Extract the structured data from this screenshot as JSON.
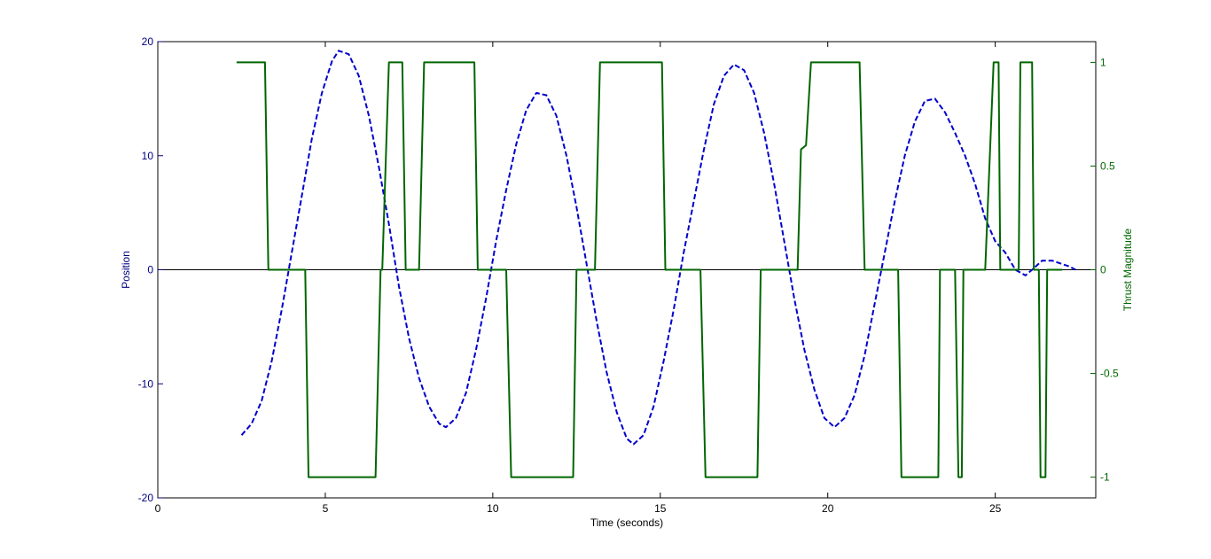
{
  "chart_data": {
    "type": "line",
    "title": "",
    "xlabel": "Time (seconds)",
    "ylabel_left": "Position",
    "ylabel_right": "Thrust Magnitude",
    "xlim": [
      0,
      28
    ],
    "ylim_left": [
      -20,
      20
    ],
    "ylim_right": [
      -1.1,
      1.1
    ],
    "grid": false,
    "legend": "none",
    "x_ticks": [
      0,
      5,
      10,
      15,
      20,
      25
    ],
    "x_tick_labels": [
      "0",
      "5",
      "10",
      "15",
      "20",
      "25"
    ],
    "y_left_ticks": [
      -20,
      -10,
      0,
      10,
      20
    ],
    "y_left_tick_labels": [
      "-20",
      "-10",
      "0",
      "10",
      "20"
    ],
    "y_right_ticks": [
      -1,
      -0.5,
      0,
      0.5,
      1
    ],
    "y_right_tick_labels": [
      "-1",
      "-0.5",
      "0",
      "0.5",
      "1"
    ],
    "colors": {
      "position": "#0000cc",
      "thrust": "#006600",
      "left_axis": "#000080",
      "right_axis": "#006600",
      "frame": "#000000",
      "zero_line": "#000000"
    },
    "series": [
      {
        "axis": "left",
        "style": "dashed",
        "points": [
          [
            2.5,
            -14.5
          ],
          [
            2.8,
            -13.5
          ],
          [
            3.1,
            -11.5
          ],
          [
            3.4,
            -8.0
          ],
          [
            3.7,
            -3.5
          ],
          [
            4.0,
            1.5
          ],
          [
            4.3,
            6.5
          ],
          [
            4.6,
            11.5
          ],
          [
            4.9,
            15.5
          ],
          [
            5.2,
            18.3
          ],
          [
            5.4,
            19.2
          ],
          [
            5.7,
            18.9
          ],
          [
            6.0,
            17.0
          ],
          [
            6.3,
            13.5
          ],
          [
            6.6,
            9.0
          ],
          [
            6.9,
            4.0
          ],
          [
            7.2,
            -1.5
          ],
          [
            7.5,
            -6.0
          ],
          [
            7.8,
            -9.5
          ],
          [
            8.1,
            -12.0
          ],
          [
            8.4,
            -13.5
          ],
          [
            8.6,
            -13.8
          ],
          [
            8.9,
            -13.0
          ],
          [
            9.2,
            -10.8
          ],
          [
            9.5,
            -7.0
          ],
          [
            9.8,
            -2.5
          ],
          [
            10.1,
            2.5
          ],
          [
            10.4,
            7.0
          ],
          [
            10.7,
            11.0
          ],
          [
            11.0,
            14.0
          ],
          [
            11.3,
            15.5
          ],
          [
            11.6,
            15.3
          ],
          [
            11.9,
            13.5
          ],
          [
            12.2,
            10.0
          ],
          [
            12.5,
            5.5
          ],
          [
            12.8,
            0.5
          ],
          [
            13.1,
            -4.5
          ],
          [
            13.4,
            -9.0
          ],
          [
            13.7,
            -12.5
          ],
          [
            14.0,
            -14.8
          ],
          [
            14.2,
            -15.3
          ],
          [
            14.5,
            -14.5
          ],
          [
            14.8,
            -12.0
          ],
          [
            15.1,
            -8.0
          ],
          [
            15.4,
            -3.5
          ],
          [
            15.7,
            1.5
          ],
          [
            16.0,
            6.0
          ],
          [
            16.3,
            10.5
          ],
          [
            16.6,
            14.5
          ],
          [
            16.9,
            17.0
          ],
          [
            17.2,
            18.0
          ],
          [
            17.5,
            17.5
          ],
          [
            17.8,
            15.5
          ],
          [
            18.1,
            12.0
          ],
          [
            18.4,
            7.5
          ],
          [
            18.7,
            2.5
          ],
          [
            19.0,
            -2.5
          ],
          [
            19.3,
            -7.0
          ],
          [
            19.6,
            -10.5
          ],
          [
            19.9,
            -13.0
          ],
          [
            20.2,
            -13.8
          ],
          [
            20.5,
            -13.0
          ],
          [
            20.8,
            -11.0
          ],
          [
            21.1,
            -7.5
          ],
          [
            21.4,
            -3.0
          ],
          [
            21.7,
            1.5
          ],
          [
            22.0,
            6.0
          ],
          [
            22.3,
            10.0
          ],
          [
            22.6,
            13.0
          ],
          [
            22.9,
            14.8
          ],
          [
            23.2,
            15.0
          ],
          [
            23.5,
            13.8
          ],
          [
            23.8,
            12.0
          ],
          [
            24.1,
            10.0
          ],
          [
            24.4,
            7.5
          ],
          [
            24.7,
            4.5
          ],
          [
            25.0,
            2.5
          ],
          [
            25.3,
            1.5
          ],
          [
            25.6,
            0.0
          ],
          [
            25.9,
            -0.5
          ],
          [
            26.1,
            0.0
          ],
          [
            26.4,
            0.8
          ],
          [
            26.7,
            0.8
          ],
          [
            27.0,
            0.5
          ],
          [
            27.2,
            0.3
          ],
          [
            27.4,
            0.0
          ]
        ]
      },
      {
        "axis": "right",
        "style": "solid",
        "points": [
          [
            2.35,
            1
          ],
          [
            3.2,
            1
          ],
          [
            3.3,
            0
          ],
          [
            4.4,
            0
          ],
          [
            4.5,
            -1
          ],
          [
            6.5,
            -1
          ],
          [
            6.65,
            0
          ],
          [
            6.7,
            0
          ],
          [
            6.9,
            1
          ],
          [
            7.3,
            1
          ],
          [
            7.4,
            0
          ],
          [
            7.8,
            0
          ],
          [
            7.95,
            1
          ],
          [
            9.45,
            1
          ],
          [
            9.55,
            0
          ],
          [
            10.4,
            0
          ],
          [
            10.55,
            -1
          ],
          [
            12.4,
            -1
          ],
          [
            12.5,
            0
          ],
          [
            13.05,
            0
          ],
          [
            13.2,
            1
          ],
          [
            15.05,
            1
          ],
          [
            15.15,
            0
          ],
          [
            16.2,
            0
          ],
          [
            16.35,
            -1
          ],
          [
            17.9,
            -1
          ],
          [
            18.0,
            0
          ],
          [
            19.1,
            0
          ],
          [
            19.2,
            0.58
          ],
          [
            19.35,
            0.6
          ],
          [
            19.5,
            1
          ],
          [
            20.95,
            1
          ],
          [
            21.1,
            0
          ],
          [
            22.1,
            0
          ],
          [
            22.2,
            -1
          ],
          [
            23.3,
            -1
          ],
          [
            23.35,
            0
          ],
          [
            23.8,
            0
          ],
          [
            23.9,
            -1
          ],
          [
            24.0,
            -1
          ],
          [
            24.05,
            0
          ],
          [
            24.7,
            0
          ],
          [
            24.95,
            1
          ],
          [
            25.1,
            1
          ],
          [
            25.15,
            0
          ],
          [
            25.7,
            0
          ],
          [
            25.75,
            1
          ],
          [
            26.1,
            1
          ],
          [
            26.15,
            0
          ],
          [
            26.3,
            0
          ],
          [
            26.35,
            -1
          ],
          [
            26.5,
            -1
          ],
          [
            26.55,
            0
          ],
          [
            27.0,
            0
          ]
        ]
      }
    ]
  }
}
